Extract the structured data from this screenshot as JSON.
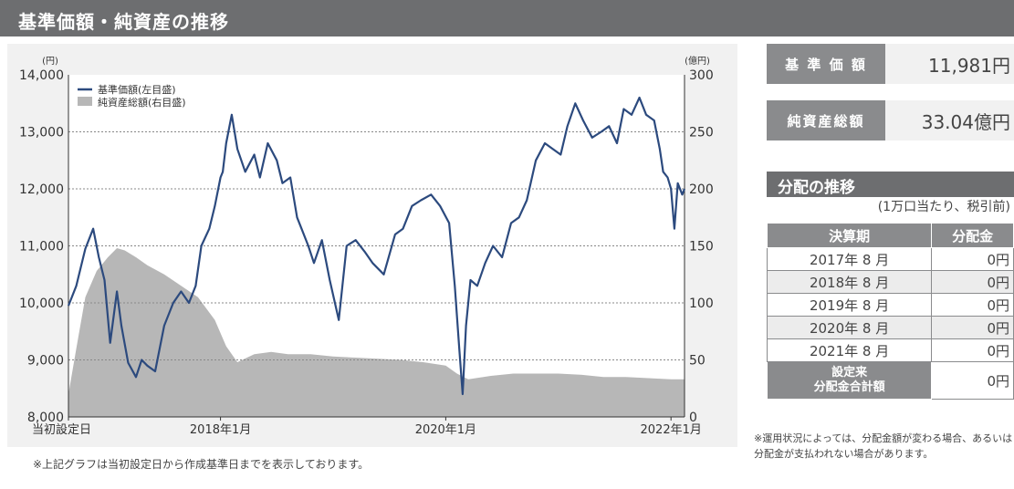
{
  "header": {
    "title": "基準価額・純資産の推移"
  },
  "chart_note": "※上記グラフは当初設定日から作成基準日までを表示しております。",
  "chart_data": {
    "type": "line",
    "left_unit": "(円)",
    "right_unit": "(億円)",
    "y_left_ticks": [
      "14,000",
      "13,000",
      "12,000",
      "11,000",
      "10,000",
      "9,000",
      "8,000"
    ],
    "y_right_ticks": [
      "300",
      "250",
      "200",
      "150",
      "100",
      "50",
      "0"
    ],
    "ylim_left": [
      8000,
      14000
    ],
    "ylim_right": [
      0,
      300
    ],
    "x_tick_labels": [
      "当初設定日",
      "2018年1月",
      "2020年1月",
      "2022年1月"
    ],
    "x_ticks": [
      2016.65,
      2018.0,
      2020.0,
      2022.0
    ],
    "xlim": [
      2016.65,
      2022.12
    ],
    "grid": true,
    "legend_position": "top-left",
    "series": [
      {
        "name": "基準価額(左目盛)",
        "axis": "left",
        "color": "#2c4a7e",
        "x": [
          2016.65,
          2016.72,
          2016.8,
          2016.87,
          2016.92,
          2016.97,
          2017.02,
          2017.08,
          2017.12,
          2017.18,
          2017.25,
          2017.3,
          2017.35,
          2017.42,
          2017.5,
          2017.58,
          2017.65,
          2017.72,
          2017.78,
          2017.83,
          2017.9,
          2017.95,
          2018.0,
          2018.02,
          2018.05,
          2018.1,
          2018.15,
          2018.22,
          2018.3,
          2018.35,
          2018.42,
          2018.5,
          2018.55,
          2018.62,
          2018.68,
          2018.72,
          2018.78,
          2018.83,
          2018.9,
          2018.97,
          2019.05,
          2019.12,
          2019.2,
          2019.28,
          2019.35,
          2019.45,
          2019.55,
          2019.62,
          2019.7,
          2019.78,
          2019.87,
          2019.95,
          2020.03,
          2020.08,
          2020.12,
          2020.15,
          2020.18,
          2020.22,
          2020.28,
          2020.35,
          2020.42,
          2020.5,
          2020.58,
          2020.65,
          2020.72,
          2020.8,
          2020.88,
          2020.95,
          2021.02,
          2021.08,
          2021.15,
          2021.22,
          2021.3,
          2021.38,
          2021.45,
          2021.52,
          2021.58,
          2021.65,
          2021.72,
          2021.78,
          2021.85,
          2021.9,
          2021.93,
          2021.97,
          2022.0,
          2022.03,
          2022.06,
          2022.1,
          2022.12
        ],
        "y": [
          9950,
          10300,
          10950,
          11300,
          10800,
          10400,
          9300,
          10200,
          9600,
          8950,
          8700,
          9000,
          8900,
          8800,
          9600,
          10000,
          10200,
          10000,
          10300,
          11000,
          11300,
          11700,
          12200,
          12300,
          12800,
          13300,
          12700,
          12300,
          12600,
          12200,
          12800,
          12500,
          12100,
          12200,
          11500,
          11300,
          11000,
          10700,
          11100,
          10400,
          9700,
          11000,
          11100,
          10900,
          10700,
          10500,
          11200,
          11300,
          11700,
          11800,
          11900,
          11700,
          11400,
          10300,
          9200,
          8400,
          9600,
          10400,
          10300,
          10700,
          11000,
          10800,
          11400,
          11500,
          11800,
          12500,
          12800,
          12700,
          12600,
          13100,
          13500,
          13200,
          12900,
          13000,
          13100,
          12800,
          13400,
          13300,
          13600,
          13300,
          13200,
          12700,
          12300,
          12200,
          12000,
          11300,
          12100,
          11900,
          12000
        ]
      },
      {
        "name": "純資産総額(右目盛)",
        "axis": "right",
        "color": "#b7b7b7",
        "x": [
          2016.65,
          2016.72,
          2016.8,
          2016.9,
          2017.0,
          2017.08,
          2017.15,
          2017.25,
          2017.35,
          2017.5,
          2017.65,
          2017.8,
          2017.95,
          2018.05,
          2018.15,
          2018.3,
          2018.45,
          2018.6,
          2018.8,
          2019.0,
          2019.2,
          2019.4,
          2019.6,
          2019.8,
          2020.0,
          2020.1,
          2020.2,
          2020.4,
          2020.6,
          2020.8,
          2021.0,
          2021.2,
          2021.4,
          2021.6,
          2021.8,
          2022.0,
          2022.12
        ],
        "y": [
          20,
          60,
          105,
          128,
          140,
          148,
          146,
          140,
          133,
          125,
          115,
          105,
          85,
          62,
          48,
          55,
          57,
          55,
          55,
          53,
          52,
          51,
          50,
          48,
          45,
          38,
          33,
          36,
          38,
          38,
          38,
          37,
          35,
          35,
          34,
          33,
          33
        ]
      }
    ]
  },
  "summary": {
    "nav": {
      "label": "基 準 価 額",
      "value": "11,981円"
    },
    "net_assets": {
      "label": "純資産総額",
      "value": "33.04億円"
    }
  },
  "distribution": {
    "title": "分配の推移",
    "note": "(1万口当たり、税引前)",
    "headers": [
      "決算期",
      "分配金"
    ],
    "rows": [
      {
        "period": "2017年 8 月",
        "amount": "0円"
      },
      {
        "period": "2018年 8 月",
        "amount": "0円"
      },
      {
        "period": "2019年 8 月",
        "amount": "0円"
      },
      {
        "period": "2020年 8 月",
        "amount": "0円"
      },
      {
        "period": "2021年 8 月",
        "amount": "0円"
      }
    ],
    "total_label_line1": "設定来",
    "total_label_line2": "分配金合計額",
    "total_amount": "0円",
    "footnote": "※運用状況によっては、分配金額が変わる場合、あるいは分配金が支払われない場合があります。"
  }
}
